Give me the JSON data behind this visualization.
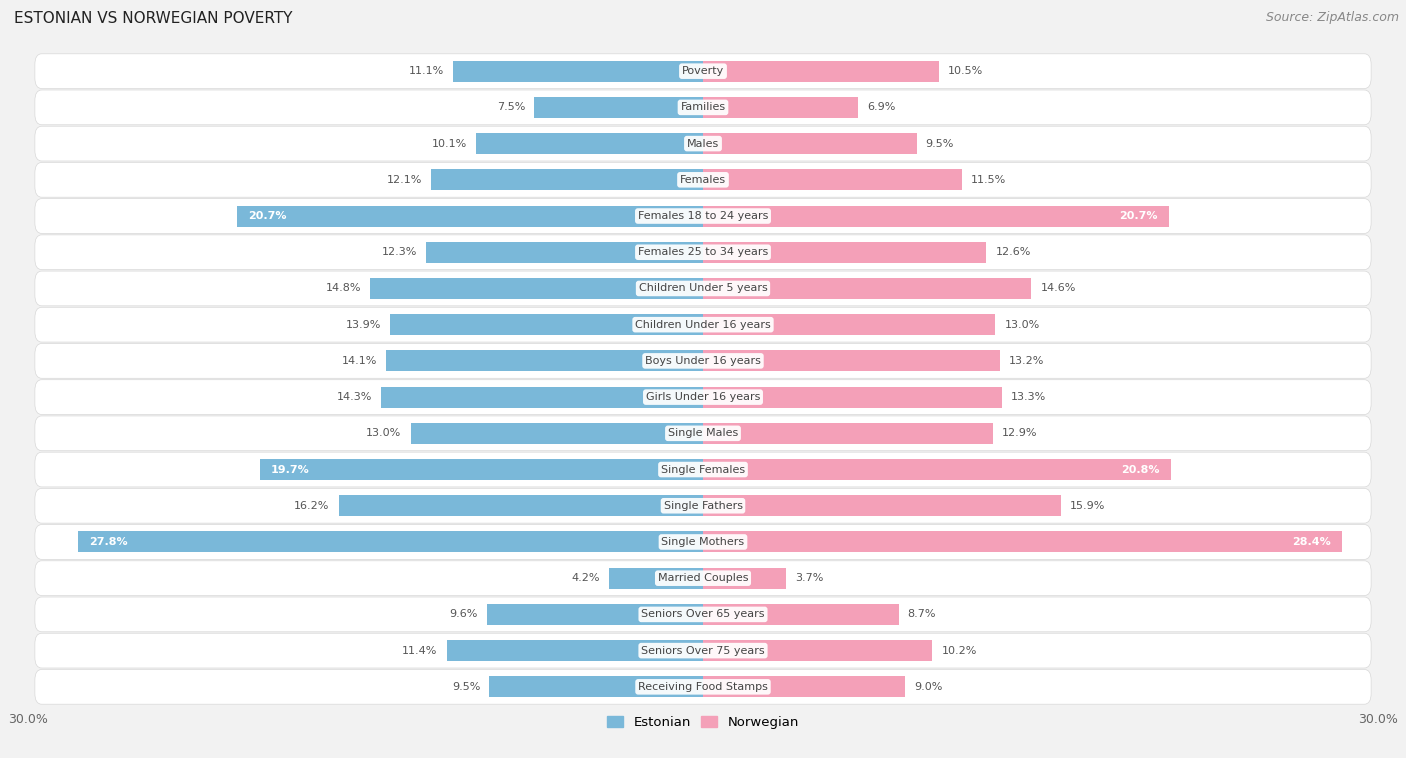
{
  "title": "ESTONIAN VS NORWEGIAN POVERTY",
  "source": "Source: ZipAtlas.com",
  "categories": [
    "Poverty",
    "Families",
    "Males",
    "Females",
    "Females 18 to 24 years",
    "Females 25 to 34 years",
    "Children Under 5 years",
    "Children Under 16 years",
    "Boys Under 16 years",
    "Girls Under 16 years",
    "Single Males",
    "Single Females",
    "Single Fathers",
    "Single Mothers",
    "Married Couples",
    "Seniors Over 65 years",
    "Seniors Over 75 years",
    "Receiving Food Stamps"
  ],
  "estonian": [
    11.1,
    7.5,
    10.1,
    12.1,
    20.7,
    12.3,
    14.8,
    13.9,
    14.1,
    14.3,
    13.0,
    19.7,
    16.2,
    27.8,
    4.2,
    9.6,
    11.4,
    9.5
  ],
  "norwegian": [
    10.5,
    6.9,
    9.5,
    11.5,
    20.7,
    12.6,
    14.6,
    13.0,
    13.2,
    13.3,
    12.9,
    20.8,
    15.9,
    28.4,
    3.7,
    8.7,
    10.2,
    9.0
  ],
  "estonian_color": "#7ab8d9",
  "norwegian_color": "#f4a0b8",
  "bg_color": "#f2f2f2",
  "row_color_even": "#ffffff",
  "row_color_odd": "#f0f0f0",
  "xlim": 30.0,
  "bar_height": 0.58,
  "figsize": [
    14.06,
    7.58
  ],
  "dpi": 100,
  "label_threshold": 18.5,
  "title_fontsize": 11,
  "source_fontsize": 9,
  "cat_fontsize": 8,
  "val_fontsize": 8
}
